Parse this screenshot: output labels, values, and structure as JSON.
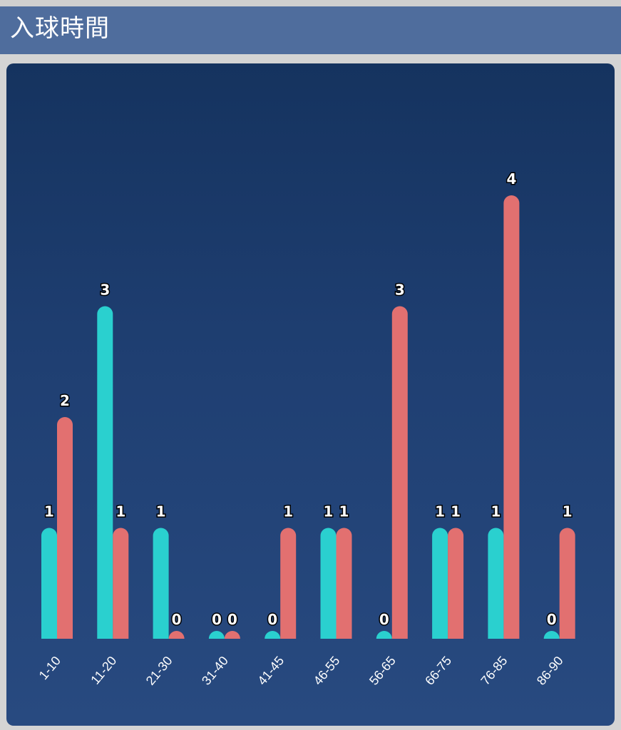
{
  "header": {
    "title": "入球時間"
  },
  "colors": {
    "header_bg": "#4f6d9d",
    "card_top": "#15335f",
    "card_bottom": "#284a80",
    "series_1": "#2ad0cf",
    "series_2": "#e27070"
  },
  "chart_data": {
    "type": "bar",
    "title": "入球時間",
    "xlabel": "",
    "ylabel": "",
    "ylim": [
      0,
      4
    ],
    "grid": false,
    "legend": "none",
    "categories": [
      "1-10",
      "11-20",
      "21-30",
      "31-40",
      "41-45",
      "46-55",
      "56-65",
      "66-75",
      "76-85",
      "86-90"
    ],
    "series": [
      {
        "color": "#2ad0cf",
        "values": [
          1,
          3,
          1,
          0,
          0,
          1,
          0,
          1,
          1,
          0
        ]
      },
      {
        "color": "#e27070",
        "values": [
          2,
          1,
          0,
          0,
          1,
          1,
          3,
          1,
          4,
          1
        ]
      }
    ]
  }
}
